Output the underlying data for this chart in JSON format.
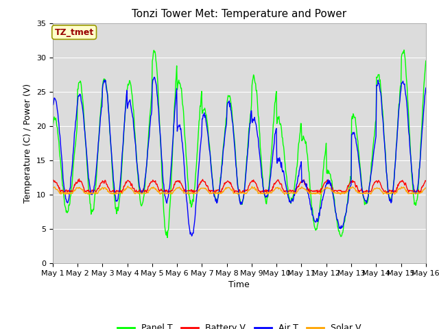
{
  "title": "Tonzi Tower Met: Temperature and Power",
  "xlabel": "Time",
  "ylabel": "Temperature (C) / Power (V)",
  "ylim": [
    0,
    35
  ],
  "xtick_labels": [
    "May 1",
    "May 2",
    "May 3",
    "May 4",
    "May 5",
    "May 6",
    "May 7",
    "May 8",
    "May 9",
    "May 10",
    "May 11",
    "May 12",
    "May 13",
    "May 14",
    "May 15",
    "May 16"
  ],
  "legend_labels": [
    "Panel T",
    "Battery V",
    "Air T",
    "Solar V"
  ],
  "legend_colors": [
    "#00FF00",
    "#FF0000",
    "#0000FF",
    "#FFA500"
  ],
  "bg_color": "#DCDCDC",
  "annotation_text": "TZ_tmet",
  "annotation_facecolor": "#FFFFCC",
  "annotation_edgecolor": "#999900",
  "annotation_textcolor": "#990000",
  "title_fontsize": 11,
  "axis_fontsize": 9,
  "tick_fontsize": 8,
  "legend_fontsize": 9,
  "linewidth": 1.0
}
